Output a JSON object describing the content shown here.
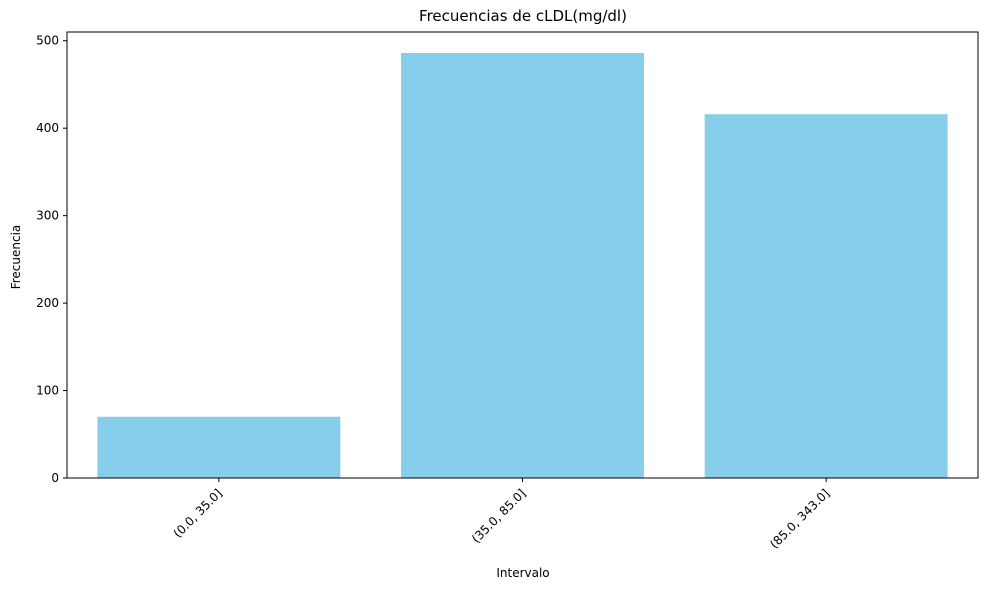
{
  "chart_data": {
    "type": "bar",
    "title": "Frecuencias de cLDL(mg/dl)",
    "xlabel": "Intervalo",
    "ylabel": "Frecuencia",
    "categories": [
      "(0.0, 35.0]",
      "(35.0, 85.0]",
      "(85.0, 343.0]"
    ],
    "values": [
      70,
      486,
      416
    ],
    "ylim": [
      0,
      510
    ],
    "yticks": [
      0,
      100,
      200,
      300,
      400,
      500
    ],
    "bar_color": "#87ceeb",
    "grid": false,
    "legend": "none"
  }
}
